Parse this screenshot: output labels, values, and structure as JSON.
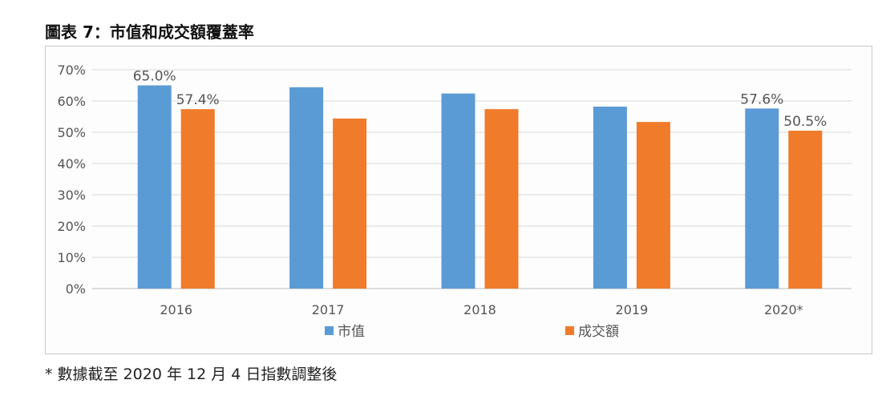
{
  "title": "圖表 7：市值和成交額覆蓋率",
  "footnote": "* 數據截至 2020 年 12 月 4 日指數調整後",
  "chart_data": {
    "type": "bar",
    "categories": [
      "2016",
      "2017",
      "2018",
      "2019",
      "2020*"
    ],
    "series": [
      {
        "name": "市值",
        "color": "#5b9bd5",
        "values": [
          65.0,
          64.4,
          62.4,
          58.2,
          57.6
        ],
        "labels": [
          "65.0%",
          null,
          null,
          null,
          "57.6%"
        ]
      },
      {
        "name": "成交額",
        "color": "#f07b2a",
        "values": [
          57.4,
          54.4,
          57.4,
          53.3,
          50.5
        ],
        "labels": [
          "57.4%",
          null,
          null,
          null,
          "50.5%"
        ]
      }
    ],
    "ylim": [
      0,
      70
    ],
    "yticks": [
      "0%",
      "10%",
      "20%",
      "30%",
      "40%",
      "50%",
      "60%",
      "70%"
    ],
    "grid": true,
    "legend": "bottom"
  }
}
